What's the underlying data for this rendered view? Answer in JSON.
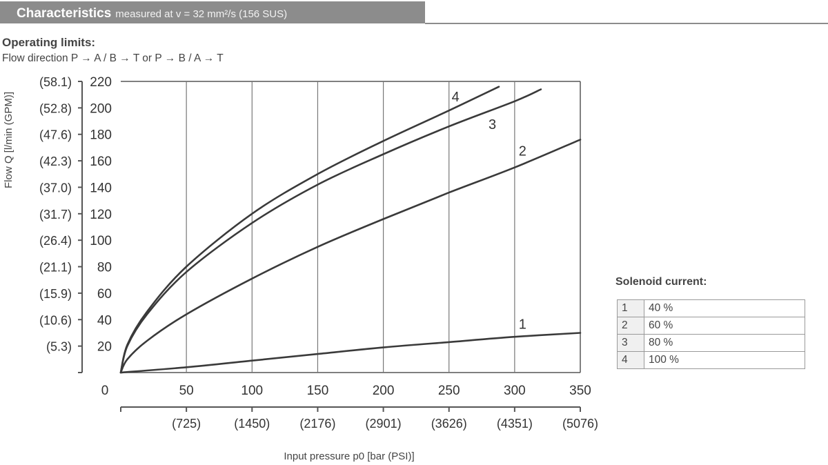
{
  "header": {
    "title": "Characteristics",
    "subtitle": "measured at v = 32 mm²/s (156 SUS)"
  },
  "operating": {
    "title": "Operating limits:",
    "direction": "Flow direction P → A / B → T or P → B / A → T"
  },
  "legend": {
    "title": "Solenoid current:",
    "rows": [
      {
        "num": "1",
        "value": "40 %"
      },
      {
        "num": "2",
        "value": "60 %"
      },
      {
        "num": "3",
        "value": "80 %"
      },
      {
        "num": "4",
        "value": "100 %"
      }
    ]
  },
  "chart_data": {
    "type": "line",
    "xlabel": "Input pressure p0 [bar (PSI)]",
    "ylabel": "Flow Q [l/min (GPM)]",
    "xlim": [
      0,
      350
    ],
    "ylim": [
      0,
      220
    ],
    "grid": true,
    "x_ticks": [
      0,
      50,
      100,
      150,
      200,
      250,
      300,
      350
    ],
    "x_tick_labels": [
      "0",
      "50",
      "100",
      "150",
      "200",
      "250",
      "300",
      "350"
    ],
    "x_alt_ticks": [
      50,
      100,
      150,
      200,
      250,
      300,
      350
    ],
    "x_alt_tick_labels": [
      "(725)",
      "(1450)",
      "(2176)",
      "(2901)",
      "(3626)",
      "(4351)",
      "(5076)"
    ],
    "y_ticks": [
      20,
      40,
      60,
      80,
      100,
      120,
      140,
      160,
      180,
      200,
      220
    ],
    "y_tick_labels": [
      "20",
      "40",
      "60",
      "80",
      "100",
      "120",
      "140",
      "160",
      "180",
      "200",
      "220"
    ],
    "y_alt_ticks": [
      20,
      40,
      60,
      80,
      100,
      120,
      140,
      160,
      180,
      200,
      220
    ],
    "y_alt_tick_labels": [
      "(5.3)",
      "(10.6)",
      "(15.9)",
      "(21.1)",
      "(26.4)",
      "(31.7)",
      "(37.0)",
      "(42.3)",
      "(47.6)",
      "(52.8)",
      "(58.1)"
    ],
    "series": [
      {
        "name": "1",
        "x": [
          0,
          50,
          100,
          150,
          200,
          250,
          300,
          350
        ],
        "y": [
          0,
          4,
          9,
          14,
          19,
          23,
          27,
          30
        ],
        "label_at": [
          306,
          33
        ]
      },
      {
        "name": "2",
        "x": [
          0,
          5,
          20,
          50,
          100,
          150,
          200,
          250,
          300,
          350
        ],
        "y": [
          0,
          10,
          24,
          44,
          71,
          95,
          116,
          136,
          155,
          176
        ],
        "label_at": [
          306,
          164
        ]
      },
      {
        "name": "3",
        "x": [
          0,
          5,
          20,
          50,
          100,
          150,
          200,
          250,
          300,
          320
        ],
        "y": [
          0,
          20,
          44,
          76,
          113,
          142,
          165,
          186,
          205,
          214
        ],
        "label_at": [
          283,
          184
        ]
      },
      {
        "name": "4",
        "x": [
          0,
          5,
          20,
          50,
          100,
          150,
          200,
          250,
          288
        ],
        "y": [
          0,
          21,
          46,
          80,
          120,
          150,
          175,
          198,
          216
        ],
        "label_at": [
          255,
          205
        ]
      }
    ]
  }
}
